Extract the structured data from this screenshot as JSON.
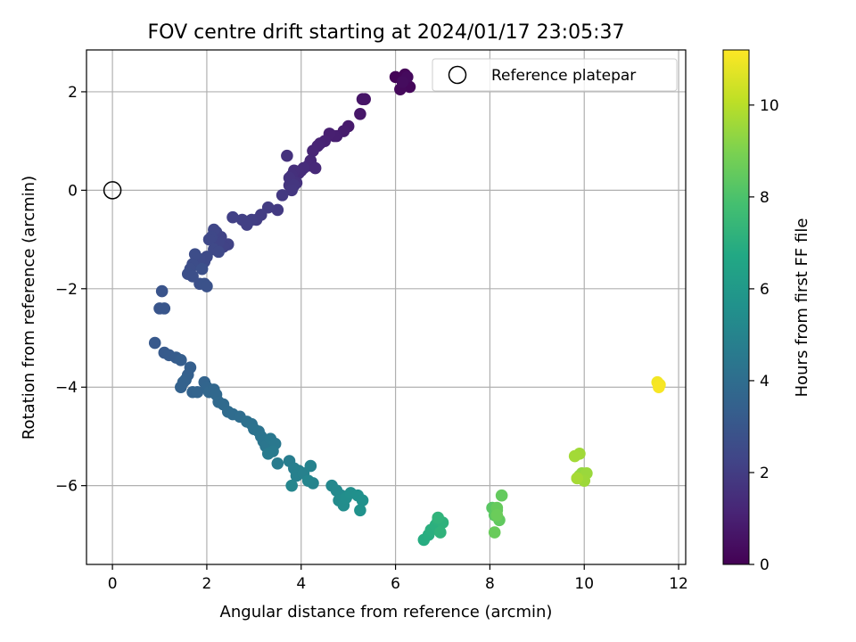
{
  "chart_data": {
    "type": "scatter",
    "title": "FOV centre drift starting at 2024/01/17 23:05:37",
    "xlabel": "Angular distance from reference (arcmin)",
    "ylabel": "Rotation from reference (arcmin)",
    "xlim": [
      -0.55,
      12.15
    ],
    "ylim": [
      -7.6,
      2.85
    ],
    "xticks": [
      0,
      2,
      4,
      6,
      8,
      10,
      12
    ],
    "yticks": [
      -6,
      -4,
      -2,
      0,
      2
    ],
    "grid": true,
    "legend": {
      "placement": "upper right",
      "label": "Reference platepar"
    },
    "reference_point": {
      "x": 0,
      "y": 0
    },
    "colorbar": {
      "label": "Hours from first FF file",
      "colormap": "viridis",
      "range": [
        0,
        11.2
      ],
      "ticks": [
        0,
        2,
        4,
        6,
        8,
        10
      ]
    },
    "series": [
      {
        "x": [
          6.0,
          6.2,
          6.3,
          6.1,
          6.25,
          6.15,
          5.35,
          5.3,
          5.25,
          5.0,
          4.9,
          4.75,
          4.7,
          4.6,
          4.5,
          4.4,
          4.35,
          4.25,
          4.2,
          4.15,
          4.3,
          4.0,
          4.05,
          3.95,
          3.85,
          3.8,
          3.9,
          3.75,
          3.7,
          3.75,
          3.85,
          3.8,
          3.6,
          3.5,
          3.3,
          3.15,
          3.05,
          2.95,
          2.85,
          2.75,
          2.55,
          2.45,
          2.35,
          2.3,
          2.25,
          2.2,
          2.15,
          2.1,
          2.05,
          2.15,
          2.25,
          2.0,
          1.95,
          1.85,
          1.75,
          1.7,
          1.65,
          1.6,
          1.7,
          1.85,
          1.9,
          1.95,
          2.0,
          1.05,
          1.0,
          1.1,
          0.9,
          1.1,
          1.2,
          1.35,
          1.45,
          1.65,
          1.6,
          1.55,
          1.5,
          1.45,
          1.7,
          1.8,
          1.95,
          2.0,
          2.05,
          2.15,
          2.2,
          2.25,
          2.35,
          2.45,
          2.55,
          2.7,
          2.85,
          2.95,
          3.0,
          3.1,
          3.15,
          3.2,
          3.25,
          3.35,
          3.45,
          3.4,
          3.3,
          3.5,
          3.75,
          3.85,
          3.95,
          3.9,
          4.05,
          4.2,
          4.25,
          4.15,
          3.8,
          4.65,
          4.75,
          4.85,
          4.8,
          4.9,
          4.95,
          5.05,
          5.2,
          5.3,
          5.25,
          6.6,
          6.7,
          6.75,
          6.85,
          6.9,
          7.0,
          6.95,
          6.9,
          8.05,
          8.1,
          8.15,
          8.2,
          8.25,
          8.15,
          8.1,
          8.15,
          9.85,
          9.9,
          9.95,
          10.0,
          10.05,
          10.0,
          9.9,
          9.8,
          9.85,
          11.55,
          11.6,
          11.58
        ],
        "y": [
          2.3,
          2.35,
          2.1,
          2.05,
          2.3,
          2.2,
          1.85,
          1.85,
          1.55,
          1.3,
          1.2,
          1.1,
          1.1,
          1.15,
          1.0,
          0.95,
          0.9,
          0.8,
          0.6,
          0.5,
          0.45,
          0.4,
          0.45,
          0.35,
          0.4,
          0.3,
          0.15,
          0.25,
          0.7,
          0.1,
          0.1,
          0.0,
          -0.1,
          -0.4,
          -0.35,
          -0.5,
          -0.6,
          -0.6,
          -0.7,
          -0.6,
          -0.55,
          -1.1,
          -1.15,
          -0.95,
          -1.05,
          -0.85,
          -0.8,
          -0.95,
          -1.0,
          -1.2,
          -1.25,
          -1.35,
          -1.45,
          -1.4,
          -1.3,
          -1.5,
          -1.6,
          -1.7,
          -1.75,
          -1.9,
          -1.6,
          -1.9,
          -1.95,
          -2.05,
          -2.4,
          -2.4,
          -3.1,
          -3.3,
          -3.35,
          -3.4,
          -3.45,
          -3.6,
          -3.75,
          -3.85,
          -3.9,
          -4.0,
          -4.1,
          -4.1,
          -3.9,
          -4.0,
          -4.1,
          -4.05,
          -4.15,
          -4.3,
          -4.35,
          -4.5,
          -4.55,
          -4.6,
          -4.7,
          -4.75,
          -4.85,
          -4.9,
          -5.0,
          -5.1,
          -5.2,
          -5.05,
          -5.15,
          -5.3,
          -5.35,
          -5.55,
          -5.5,
          -5.65,
          -5.7,
          -5.8,
          -5.75,
          -5.6,
          -5.95,
          -5.9,
          -6.0,
          -6.0,
          -6.1,
          -6.2,
          -6.3,
          -6.4,
          -6.25,
          -6.15,
          -6.2,
          -6.3,
          -6.5,
          -7.1,
          -7.0,
          -6.9,
          -6.8,
          -6.7,
          -6.75,
          -6.95,
          -6.65,
          -6.45,
          -6.6,
          -6.5,
          -6.7,
          -6.2,
          -6.45,
          -6.95,
          -6.6,
          -5.85,
          -5.8,
          -5.75,
          -5.8,
          -5.75,
          -5.9,
          -5.35,
          -5.4,
          -5.85,
          -3.9,
          -3.95,
          -4.0
        ],
        "hours": [
          0.1,
          0.15,
          0.2,
          0.25,
          0.3,
          0.35,
          0.6,
          0.65,
          0.7,
          0.8,
          0.85,
          0.9,
          0.95,
          1.0,
          1.05,
          1.1,
          1.15,
          1.2,
          1.25,
          1.3,
          1.3,
          1.35,
          1.4,
          1.45,
          1.5,
          1.55,
          1.6,
          1.65,
          1.6,
          1.7,
          1.75,
          1.8,
          1.85,
          1.9,
          1.95,
          2.0,
          2.0,
          2.05,
          2.1,
          2.1,
          2.15,
          2.2,
          2.2,
          2.25,
          2.3,
          2.3,
          2.35,
          2.4,
          2.4,
          2.45,
          2.45,
          2.5,
          2.5,
          2.55,
          2.6,
          2.6,
          2.65,
          2.7,
          2.7,
          2.75,
          2.75,
          2.8,
          2.8,
          2.9,
          2.95,
          3.0,
          3.1,
          3.15,
          3.2,
          3.25,
          3.3,
          3.35,
          3.4,
          3.45,
          3.5,
          3.5,
          3.55,
          3.6,
          3.6,
          3.65,
          3.7,
          3.7,
          3.75,
          3.8,
          3.85,
          3.9,
          3.95,
          4.0,
          4.1,
          4.15,
          4.2,
          4.25,
          4.3,
          4.35,
          4.4,
          4.45,
          4.5,
          4.55,
          4.6,
          4.65,
          4.7,
          4.75,
          4.8,
          4.85,
          4.9,
          4.95,
          5.0,
          5.05,
          5.1,
          5.2,
          5.25,
          5.3,
          5.35,
          5.4,
          5.45,
          5.5,
          5.55,
          5.6,
          5.65,
          6.9,
          6.95,
          7.0,
          7.05,
          7.1,
          7.15,
          7.2,
          7.25,
          8.3,
          8.35,
          8.4,
          8.45,
          8.5,
          8.55,
          8.6,
          8.65,
          9.3,
          9.35,
          9.4,
          9.45,
          9.5,
          9.55,
          9.6,
          9.65,
          9.7,
          11.0,
          11.05,
          11.1
        ]
      }
    ]
  }
}
